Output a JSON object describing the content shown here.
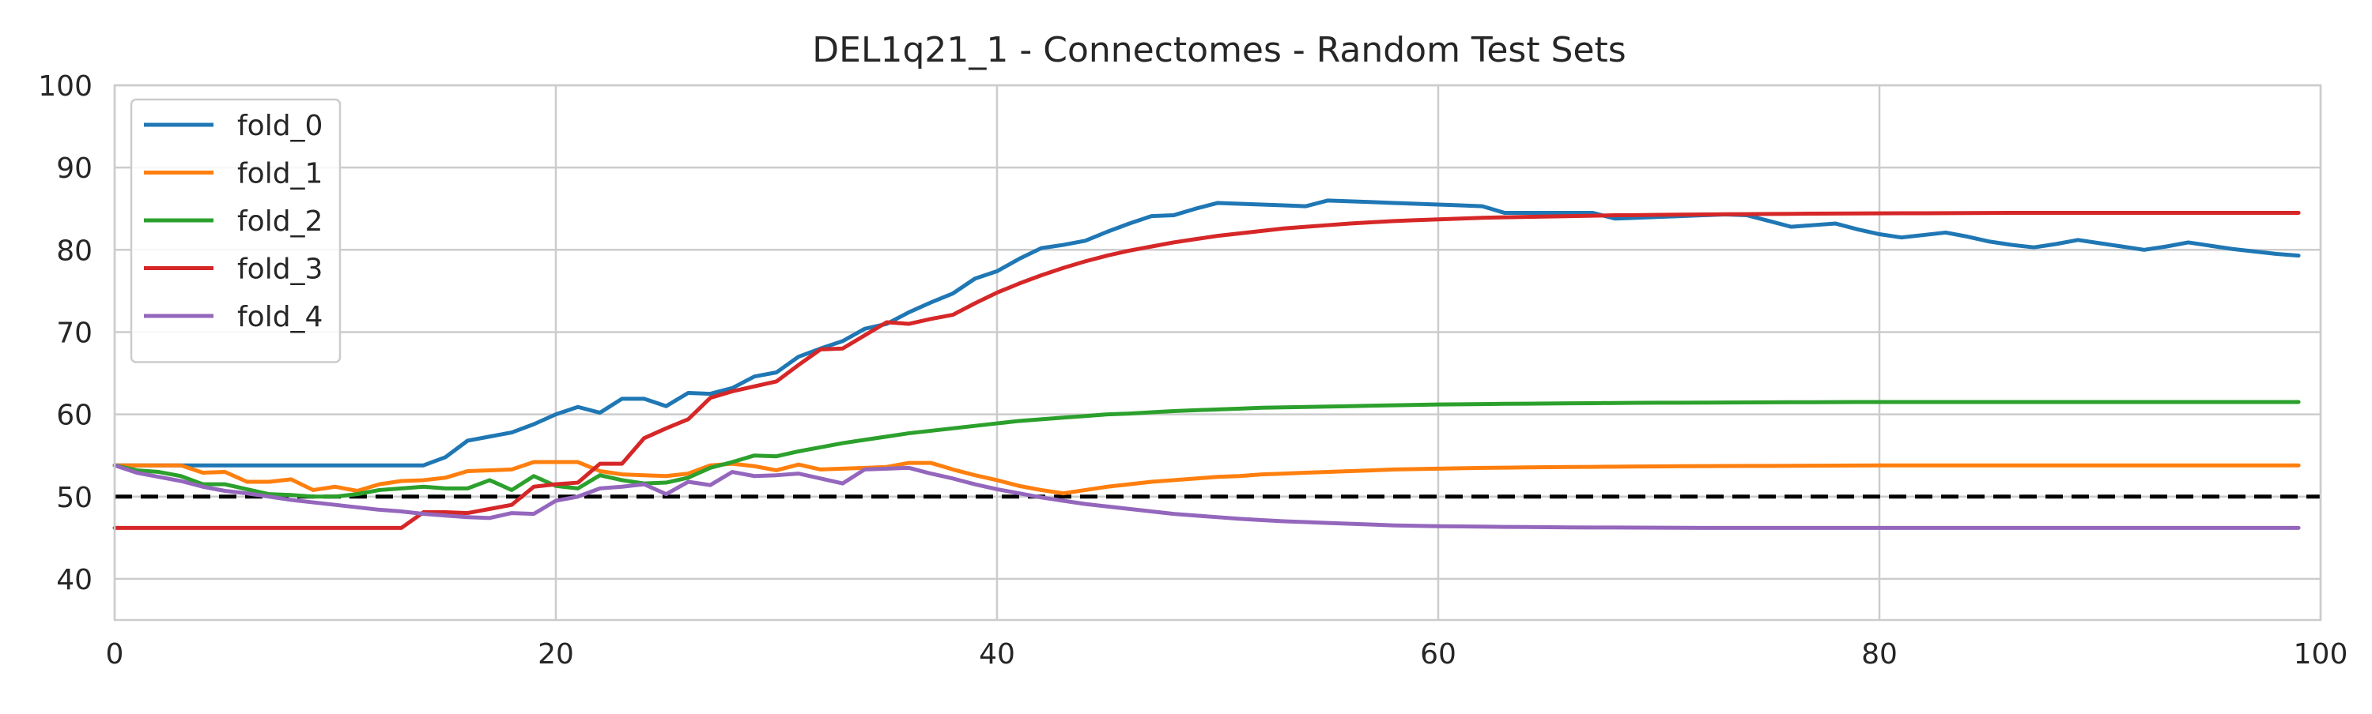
{
  "chart_data": {
    "type": "line",
    "title": "DEL1q21_1 - Connectomes - Random Test Sets",
    "xlabel": "",
    "ylabel": "",
    "xlim": [
      0,
      100
    ],
    "ylim": [
      35,
      100
    ],
    "xticks": [
      0,
      20,
      40,
      60,
      80,
      100
    ],
    "yticks": [
      40,
      50,
      60,
      70,
      80,
      90,
      100
    ],
    "grid": true,
    "legend_position": "top-left",
    "reference_line": {
      "y": 50,
      "style": "dashed",
      "color": "#000000"
    },
    "x": [
      0,
      1,
      2,
      3,
      4,
      5,
      6,
      7,
      8,
      9,
      10,
      11,
      12,
      13,
      14,
      15,
      16,
      17,
      18,
      19,
      20,
      21,
      22,
      23,
      24,
      25,
      26,
      27,
      28,
      29,
      30,
      31,
      32,
      33,
      34,
      35,
      36,
      37,
      38,
      39,
      40,
      41,
      42,
      43,
      44,
      45,
      46,
      47,
      48,
      49,
      50,
      51,
      52,
      53,
      54,
      55,
      56,
      57,
      58,
      59,
      60,
      61,
      62,
      63,
      64,
      65,
      66,
      67,
      68,
      69,
      70,
      71,
      72,
      73,
      74,
      75,
      76,
      77,
      78,
      79,
      80,
      81,
      82,
      83,
      84,
      85,
      86,
      87,
      88,
      89,
      90,
      91,
      92,
      93,
      94,
      95,
      96,
      97,
      98,
      99
    ],
    "series": [
      {
        "name": "fold_0",
        "color": "#1f77b4",
        "values": [
          53.8,
          53.8,
          53.8,
          53.8,
          53.8,
          53.8,
          53.8,
          53.8,
          53.8,
          53.8,
          53.8,
          53.8,
          53.8,
          53.8,
          53.8,
          54.8,
          56.8,
          57.3,
          57.8,
          58.8,
          60.0,
          60.9,
          60.2,
          61.9,
          61.9,
          61.0,
          62.6,
          62.5,
          63.2,
          64.6,
          65.1,
          67.0,
          68.0,
          68.9,
          70.4,
          71.0,
          72.4,
          73.6,
          74.7,
          76.5,
          77.4,
          78.9,
          80.2,
          80.6,
          81.1,
          82.2,
          83.2,
          84.1,
          84.2,
          85.0,
          85.7,
          85.6,
          85.5,
          85.4,
          85.3,
          86.0,
          85.9,
          85.8,
          85.7,
          85.6,
          85.5,
          85.4,
          85.3,
          84.5,
          84.5,
          84.5,
          84.5,
          84.5,
          83.8,
          83.9,
          84.0,
          84.1,
          84.2,
          84.3,
          84.2,
          83.5,
          82.8,
          83.0,
          83.2,
          82.5,
          81.9,
          81.5,
          81.8,
          82.1,
          81.6,
          81.0,
          80.6,
          80.3,
          80.7,
          81.2,
          80.8,
          80.4,
          80.0,
          80.4,
          80.9,
          80.5,
          80.1,
          79.8,
          79.5,
          79.3
        ]
      },
      {
        "name": "fold_1",
        "color": "#ff7f0e",
        "values": [
          53.8,
          53.8,
          53.8,
          53.8,
          52.9,
          53.0,
          51.8,
          51.8,
          52.1,
          50.8,
          51.2,
          50.7,
          51.5,
          51.9,
          52.0,
          52.3,
          53.1,
          53.2,
          53.3,
          54.2,
          54.2,
          54.2,
          53.1,
          52.7,
          52.6,
          52.5,
          52.8,
          53.8,
          54.0,
          53.7,
          53.2,
          53.9,
          53.3,
          53.4,
          53.5,
          53.6,
          54.1,
          54.1,
          53.3,
          52.6,
          52.0,
          51.3,
          50.8,
          50.4,
          50.8,
          51.2,
          51.5,
          51.8,
          52.0,
          52.2,
          52.4,
          52.5,
          52.7,
          52.8,
          52.9,
          53.0,
          53.1,
          53.2,
          53.3,
          53.35,
          53.4,
          53.45,
          53.5,
          53.52,
          53.55,
          53.58,
          53.6,
          53.62,
          53.64,
          53.66,
          53.68,
          53.7,
          53.71,
          53.72,
          53.73,
          53.74,
          53.75,
          53.76,
          53.77,
          53.78,
          53.79,
          53.8,
          53.8,
          53.8,
          53.8,
          53.8,
          53.8,
          53.8,
          53.8,
          53.8,
          53.8,
          53.8,
          53.8,
          53.8,
          53.8,
          53.8,
          53.8,
          53.8,
          53.8,
          53.8
        ]
      },
      {
        "name": "fold_2",
        "color": "#2ca02c",
        "values": [
          53.8,
          53.2,
          53.0,
          52.5,
          51.5,
          51.5,
          50.9,
          50.3,
          50.2,
          50.0,
          50.0,
          50.3,
          50.8,
          51.0,
          51.2,
          51.0,
          51.0,
          52.0,
          50.8,
          52.5,
          51.3,
          51.0,
          52.6,
          52.0,
          51.6,
          51.7,
          52.3,
          53.5,
          54.2,
          55.0,
          54.9,
          55.5,
          56.0,
          56.5,
          56.9,
          57.3,
          57.7,
          58.0,
          58.3,
          58.6,
          58.9,
          59.2,
          59.4,
          59.6,
          59.8,
          60.0,
          60.1,
          60.25,
          60.4,
          60.5,
          60.6,
          60.7,
          60.8,
          60.85,
          60.9,
          60.95,
          61.0,
          61.05,
          61.1,
          61.15,
          61.2,
          61.22,
          61.25,
          61.28,
          61.3,
          61.32,
          61.34,
          61.36,
          61.38,
          61.4,
          61.41,
          61.42,
          61.43,
          61.44,
          61.45,
          61.46,
          61.47,
          61.48,
          61.49,
          61.5,
          61.5,
          61.5,
          61.5,
          61.5,
          61.5,
          61.5,
          61.5,
          61.5,
          61.5,
          61.5,
          61.5,
          61.5,
          61.5,
          61.5,
          61.5,
          61.5,
          61.5,
          61.5,
          61.5,
          61.5
        ]
      },
      {
        "name": "fold_3",
        "color": "#d62728",
        "values": [
          46.2,
          46.2,
          46.2,
          46.2,
          46.2,
          46.2,
          46.2,
          46.2,
          46.2,
          46.2,
          46.2,
          46.2,
          46.2,
          46.2,
          48.1,
          48.1,
          48.0,
          48.5,
          49.0,
          51.2,
          51.5,
          51.7,
          54.0,
          54.0,
          57.1,
          58.3,
          59.4,
          62.0,
          62.8,
          63.4,
          64.0,
          66.0,
          67.9,
          68.0,
          69.6,
          71.2,
          71.0,
          71.6,
          72.1,
          73.5,
          74.8,
          75.9,
          76.9,
          77.8,
          78.6,
          79.3,
          79.9,
          80.4,
          80.9,
          81.3,
          81.7,
          82.0,
          82.3,
          82.6,
          82.8,
          83.0,
          83.2,
          83.35,
          83.5,
          83.6,
          83.7,
          83.8,
          83.9,
          83.95,
          84.0,
          84.05,
          84.1,
          84.15,
          84.2,
          84.22,
          84.25,
          84.28,
          84.3,
          84.32,
          84.34,
          84.36,
          84.38,
          84.4,
          84.41,
          84.42,
          84.43,
          84.44,
          84.45,
          84.46,
          84.47,
          84.48,
          84.49,
          84.5,
          84.5,
          84.5,
          84.5,
          84.5,
          84.5,
          84.5,
          84.5,
          84.5,
          84.5,
          84.5,
          84.5,
          84.5
        ]
      },
      {
        "name": "fold_4",
        "color": "#9467bd",
        "values": [
          53.8,
          52.9,
          52.4,
          51.9,
          51.2,
          50.7,
          50.4,
          50.0,
          49.6,
          49.3,
          49.0,
          48.7,
          48.4,
          48.2,
          47.9,
          47.7,
          47.5,
          47.4,
          48.0,
          47.9,
          49.5,
          50.0,
          51.0,
          51.2,
          51.5,
          50.3,
          51.8,
          51.4,
          53.0,
          52.5,
          52.6,
          52.8,
          52.2,
          51.6,
          53.3,
          53.4,
          53.5,
          52.8,
          52.2,
          51.5,
          50.9,
          50.4,
          49.9,
          49.5,
          49.1,
          48.8,
          48.5,
          48.2,
          47.9,
          47.7,
          47.5,
          47.3,
          47.15,
          47.0,
          46.9,
          46.8,
          46.7,
          46.6,
          46.5,
          46.45,
          46.4,
          46.38,
          46.35,
          46.32,
          46.3,
          46.28,
          46.26,
          46.25,
          46.24,
          46.23,
          46.22,
          46.21,
          46.2,
          46.2,
          46.2,
          46.2,
          46.2,
          46.2,
          46.2,
          46.2,
          46.2,
          46.2,
          46.2,
          46.2,
          46.2,
          46.2,
          46.2,
          46.2,
          46.2,
          46.2,
          46.2,
          46.2,
          46.2,
          46.2,
          46.2,
          46.2,
          46.2,
          46.2,
          46.2,
          46.2
        ]
      }
    ]
  }
}
